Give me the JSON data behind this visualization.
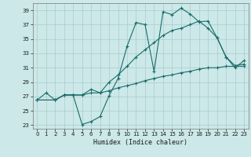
{
  "xlabel": "Humidex (Indice chaleur)",
  "bg_color": "#cce8e8",
  "grid_color": "#aacccc",
  "line_color": "#1a6b6b",
  "xlim": [
    -0.5,
    23.5
  ],
  "ylim": [
    22.5,
    40.0
  ],
  "xticks": [
    0,
    1,
    2,
    3,
    4,
    5,
    6,
    7,
    8,
    9,
    10,
    11,
    12,
    13,
    14,
    15,
    16,
    17,
    18,
    19,
    20,
    21,
    22,
    23
  ],
  "yticks": [
    23,
    25,
    27,
    29,
    31,
    33,
    35,
    37,
    39
  ],
  "line1_x": [
    0,
    1,
    2,
    3,
    4,
    5,
    6,
    7,
    8,
    9,
    10,
    11,
    12,
    13,
    14,
    15,
    16,
    17,
    18,
    19,
    20,
    21,
    22,
    23
  ],
  "line1_y": [
    26.5,
    27.5,
    26.5,
    27.2,
    27.2,
    23.1,
    23.5,
    24.2,
    27.1,
    29.5,
    34.0,
    37.3,
    37.0,
    30.5,
    38.8,
    38.4,
    39.3,
    38.5,
    37.4,
    37.5,
    35.2,
    32.5,
    31.0,
    32.0
  ],
  "line2_x": [
    0,
    2,
    3,
    4,
    5,
    6,
    7,
    8,
    9,
    10,
    11,
    12,
    13,
    14,
    15,
    16,
    17,
    18,
    19,
    20,
    21,
    22,
    23
  ],
  "line2_y": [
    26.5,
    26.5,
    27.2,
    27.2,
    27.2,
    28.0,
    27.5,
    29.0,
    30.0,
    31.2,
    32.5,
    33.5,
    34.5,
    35.5,
    36.2,
    36.5,
    37.0,
    37.5,
    36.5,
    35.2,
    32.5,
    31.3,
    31.5
  ],
  "line3_x": [
    0,
    2,
    3,
    4,
    5,
    6,
    7,
    8,
    9,
    10,
    11,
    12,
    13,
    14,
    15,
    16,
    17,
    18,
    19,
    20,
    21,
    22,
    23
  ],
  "line3_y": [
    26.5,
    26.5,
    27.2,
    27.2,
    27.2,
    27.5,
    27.5,
    27.8,
    28.2,
    28.5,
    28.8,
    29.2,
    29.5,
    29.8,
    30.0,
    30.3,
    30.5,
    30.8,
    31.0,
    31.0,
    31.2,
    31.2,
    31.2
  ]
}
